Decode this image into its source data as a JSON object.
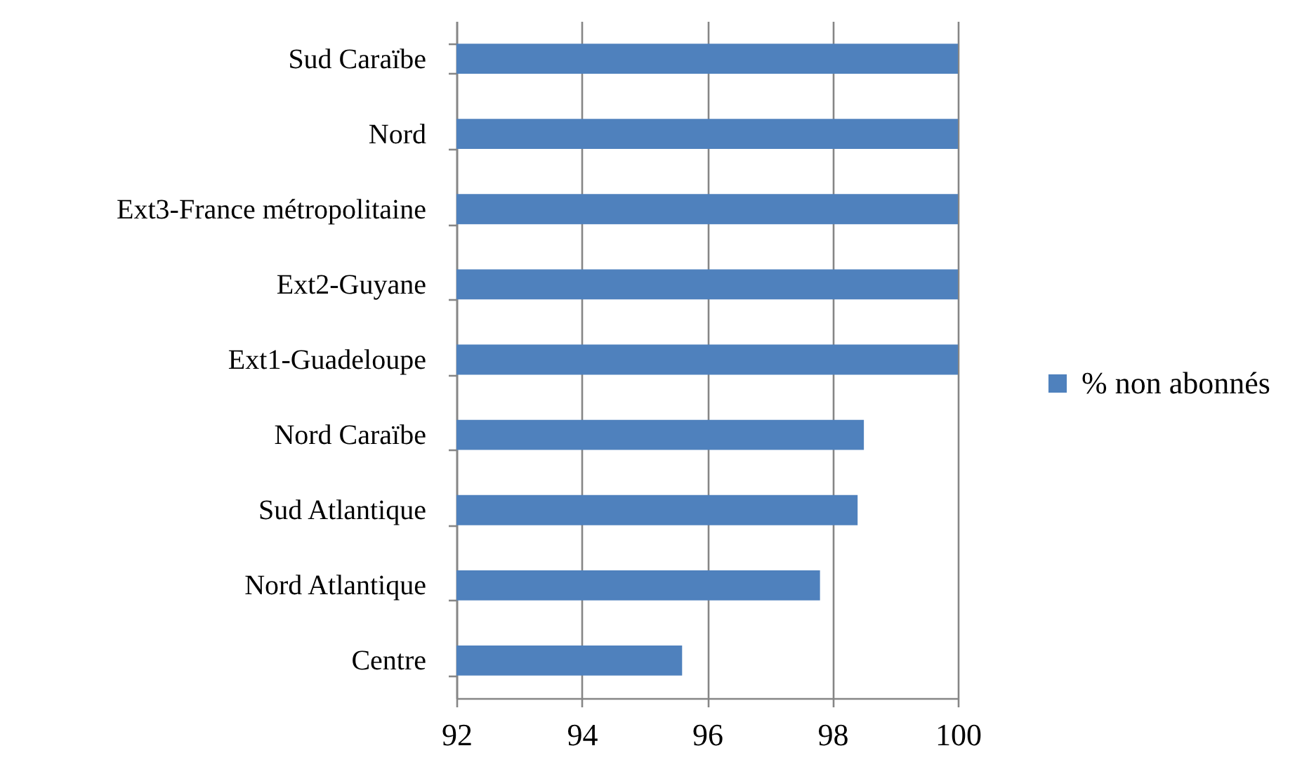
{
  "chart_data": {
    "type": "bar",
    "orientation": "horizontal",
    "categories": [
      "Sud Caraïbe",
      "Nord",
      "Ext3-France métropolitaine",
      "Ext2-Guyane",
      "Ext1-Guadeloupe",
      "Nord Caraïbe",
      "Sud Atlantique",
      "Nord Atlantique",
      "Centre"
    ],
    "series": [
      {
        "name": "% non abonnés",
        "color": "#4f81bd",
        "values": [
          100,
          100,
          100,
          100,
          100,
          98.5,
          98.4,
          97.8,
          95.6
        ]
      }
    ],
    "xlim": [
      92,
      100
    ],
    "xticks": [
      92,
      94,
      96,
      98,
      100
    ],
    "grid": "x",
    "legend": "right"
  }
}
